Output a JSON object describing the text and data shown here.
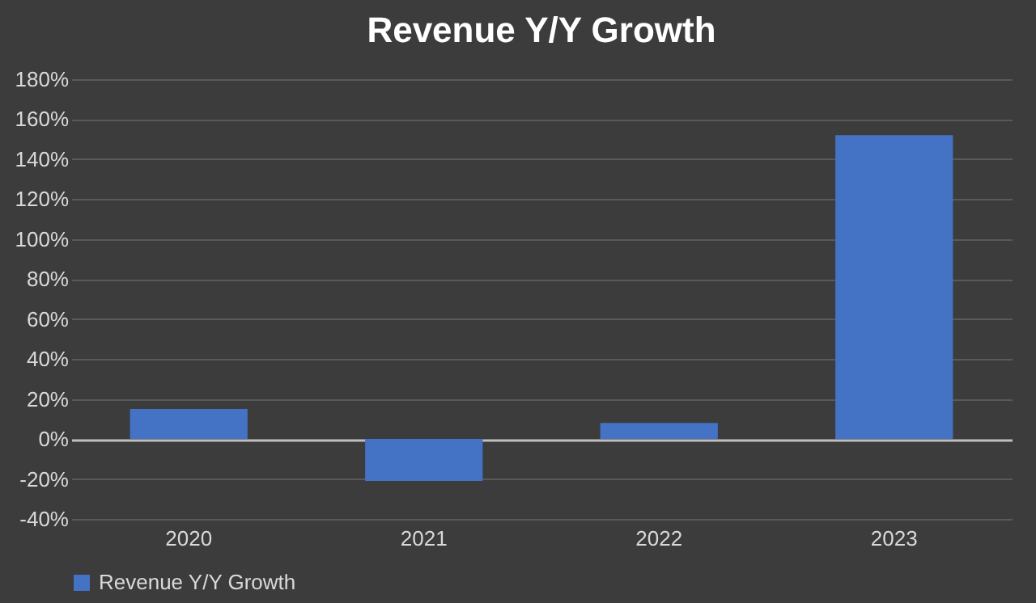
{
  "chart_data": {
    "type": "bar",
    "title": "Revenue Y/Y Growth",
    "categories": [
      "2020",
      "2021",
      "2022",
      "2023"
    ],
    "series": [
      {
        "name": "Revenue Y/Y Growth",
        "color": "#4472c4",
        "values": [
          15,
          -21,
          8,
          152
        ]
      }
    ],
    "ylim": [
      -40,
      180
    ],
    "yticks": [
      {
        "value": -40,
        "label": "-40%"
      },
      {
        "value": -20,
        "label": "-20%"
      },
      {
        "value": 0,
        "label": "0%"
      },
      {
        "value": 20,
        "label": "20%"
      },
      {
        "value": 40,
        "label": "40%"
      },
      {
        "value": 60,
        "label": "60%"
      },
      {
        "value": 80,
        "label": "80%"
      },
      {
        "value": 100,
        "label": "100%"
      },
      {
        "value": 120,
        "label": "120%"
      },
      {
        "value": 140,
        "label": "140%"
      },
      {
        "value": 160,
        "label": "160%"
      },
      {
        "value": 180,
        "label": "180%"
      }
    ],
    "grid": "y",
    "legend": "bottom"
  }
}
